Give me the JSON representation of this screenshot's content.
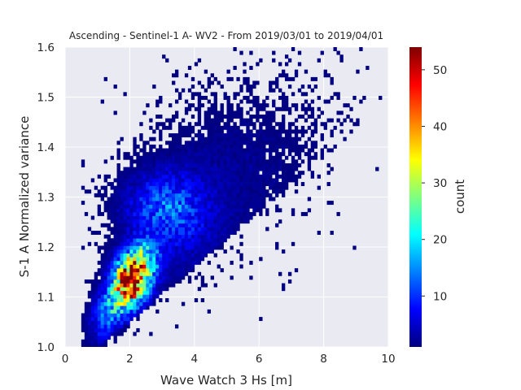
{
  "chart_data": {
    "type": "heatmap",
    "title": "Ascending - Sentinel-1 A- WV2 - From 2019/03/01 to 2019/04/01",
    "xlabel": "Wave Watch 3 Hs [m]",
    "ylabel": "S-1 A Normalized variance",
    "xlim": [
      0,
      10
    ],
    "ylim": [
      1.0,
      1.6
    ],
    "xticks": [
      0,
      2,
      4,
      6,
      8,
      10
    ],
    "yticks": [
      1.0,
      1.1,
      1.2,
      1.3,
      1.4,
      1.5,
      1.6
    ],
    "grid": true,
    "colormap": "jet",
    "colorbar": {
      "label": "count",
      "range": [
        1,
        54
      ],
      "ticks": [
        10,
        20,
        30,
        40,
        50
      ]
    },
    "density_cores": [
      {
        "x": 2.0,
        "y": 1.13,
        "count": 54
      },
      {
        "x": 2.3,
        "y": 1.16,
        "count": 40
      },
      {
        "x": 1.6,
        "y": 1.09,
        "count": 25
      },
      {
        "x": 3.0,
        "y": 1.29,
        "count": 12
      }
    ]
  },
  "colors": {
    "axes_background": "#eaeaf2",
    "grid": "#ffffff",
    "text": "#262626"
  }
}
